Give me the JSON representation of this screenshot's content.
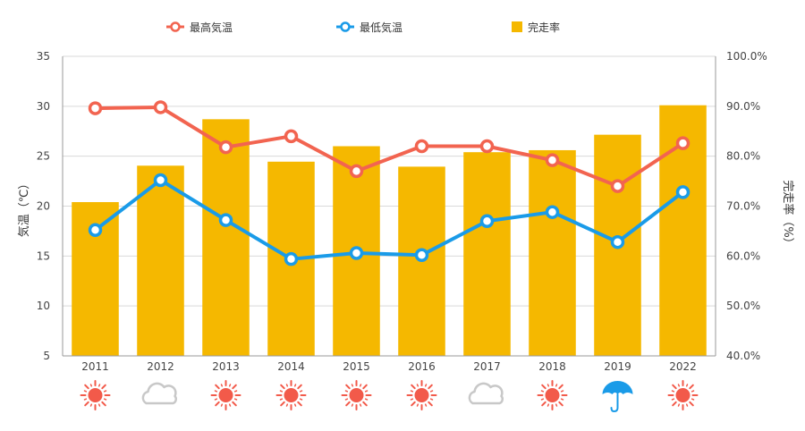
{
  "colors": {
    "max_temp": "#f26450",
    "min_temp": "#1a9be8",
    "rate": "#f5b800",
    "sun": "#f25a4a",
    "cloud": "#c8c8c8",
    "umbrella": "#1a9be8"
  },
  "legend": {
    "max_temp": "最高気温",
    "min_temp": "最低気温",
    "rate": "完走率"
  },
  "weather_icons": [
    "sun-icon",
    "cloud-icon",
    "sun-icon",
    "sun-icon",
    "sun-icon",
    "sun-icon",
    "cloud-icon",
    "sun-icon",
    "umbrella-icon",
    "sun-icon"
  ],
  "chart_data": {
    "type": "bar",
    "categories": [
      "2011",
      "2012",
      "2013",
      "2014",
      "2015",
      "2016",
      "2017",
      "2018",
      "2019",
      "2022"
    ],
    "series": [
      {
        "name": "完走率",
        "type": "bar",
        "axis": "right",
        "values": [
          70.8,
          78.1,
          87.4,
          78.9,
          82.0,
          77.9,
          80.8,
          81.2,
          84.3,
          90.2
        ]
      },
      {
        "name": "最高気温",
        "type": "line",
        "axis": "left",
        "values": [
          29.8,
          29.9,
          25.9,
          27.0,
          23.5,
          26.0,
          26.0,
          24.6,
          22.0,
          26.3
        ]
      },
      {
        "name": "最低気温",
        "type": "line",
        "axis": "left",
        "values": [
          17.6,
          22.6,
          18.6,
          14.7,
          15.3,
          15.1,
          18.5,
          19.4,
          16.4,
          21.4
        ]
      }
    ],
    "ylabel": "気温（℃）",
    "ylim": [
      5,
      35
    ],
    "yticks": [
      "5",
      "10",
      "15",
      "20",
      "25",
      "30",
      "35"
    ],
    "y2label": "完走率（%）",
    "y2lim": [
      40,
      100
    ],
    "y2ticks": [
      "40.0%",
      "50.0%",
      "60.0%",
      "70.0%",
      "80.0%",
      "90.0%",
      "100.0%"
    ],
    "grid": true,
    "legend_position": "top"
  }
}
